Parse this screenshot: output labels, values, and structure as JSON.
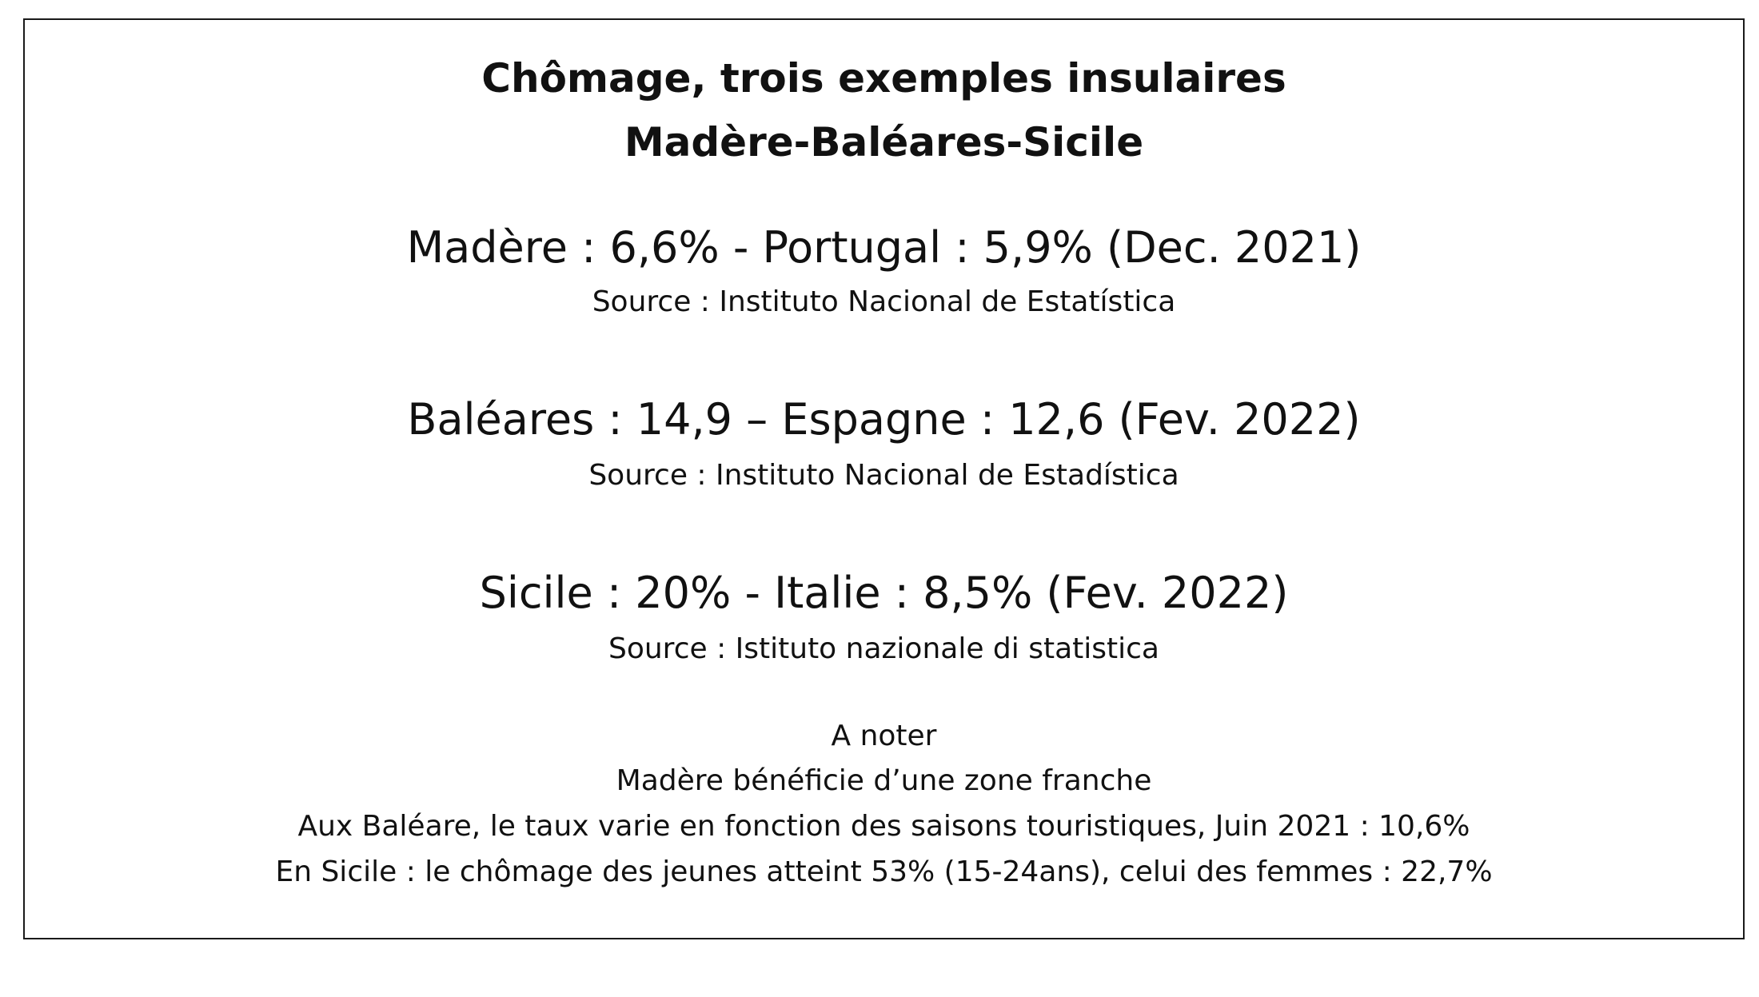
{
  "title": {
    "line1": "Chômage, trois exemples insulaires",
    "line2": "Madère-Baléares-Sicile"
  },
  "stats": [
    {
      "text": "Madère : 6,6% - Portugal : 5,9% (Dec. 2021)",
      "source": "Source : Instituto Nacional de Estatística"
    },
    {
      "text": "Baléares : 14,9 – Espagne : 12,6  (Fev. 2022)",
      "source": "Source : Instituto Nacional de Estadística"
    },
    {
      "text": "Sicile : 20% - Italie : 8,5% (Fev. 2022)",
      "source": "Source : Istituto nazionale di statistica"
    }
  ],
  "notes": {
    "heading": "A noter",
    "lines": [
      "Madère bénéficie d’une zone franche",
      "Aux Baléare, le taux varie en fonction des saisons touristiques, Juin 2021 : 10,6%",
      "En Sicile : le chômage des jeunes atteint 53% (15-24ans), celui des femmes : 22,7%"
    ]
  }
}
